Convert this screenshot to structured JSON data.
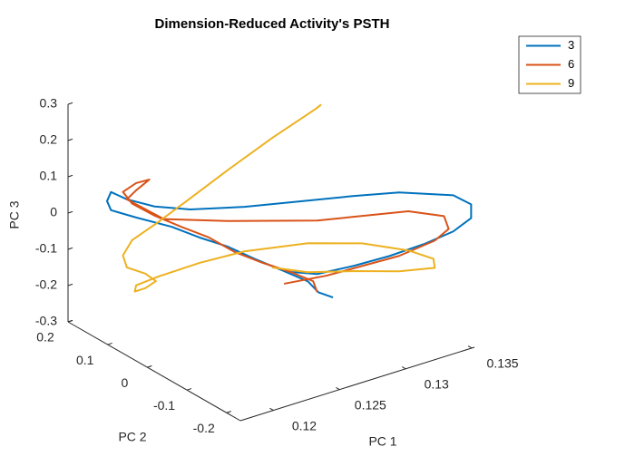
{
  "chart_data": {
    "type": "line3d",
    "title": "Dimension-Reduced Activity's PSTH",
    "xlabel": "PC 1",
    "ylabel": "PC 2",
    "zlabel": "PC 3",
    "xlim": [
      0.1175,
      0.1352
    ],
    "ylim": [
      -0.235,
      0.2
    ],
    "zlim": [
      -0.3,
      0.3
    ],
    "xticks": [
      0.12,
      0.125,
      0.13,
      0.135
    ],
    "yticks": [
      -0.2,
      -0.1,
      0,
      0.1,
      0.2
    ],
    "zticks": [
      -0.3,
      -0.2,
      -0.1,
      0,
      0.1,
      0.2,
      0.3
    ],
    "legend": "northeast",
    "series": [
      {
        "name": "3",
        "color": "#0072BD",
        "x": [
          0.1275,
          0.127,
          0.1271,
          0.1266,
          0.126,
          0.1255,
          0.1243,
          0.1231,
          0.1213,
          0.12,
          0.1197,
          0.12,
          0.1209,
          0.1224,
          0.1242,
          0.1274,
          0.1279,
          0.1297,
          0.1313,
          0.1342,
          0.1351,
          0.1351,
          0.1339,
          0.1321,
          0.1297,
          0.1273,
          0.1248,
          0.1231
        ],
        "y": [
          -0.135,
          -0.115,
          -0.085,
          -0.035,
          0.015,
          0.065,
          0.095,
          0.125,
          0.155,
          0.175,
          0.175,
          0.175,
          0.165,
          0.145,
          0.115,
          0.085,
          -0.035,
          -0.115,
          -0.175,
          -0.215,
          -0.23,
          -0.23,
          -0.225,
          -0.215,
          -0.205,
          -0.195,
          -0.185,
          -0.175
        ],
        "z": [
          -0.1372,
          -0.13,
          -0.1195,
          -0.114,
          -0.1065,
          -0.099,
          -0.0795,
          -0.055,
          -0.0275,
          -0.005,
          0.0235,
          0.045,
          0.021,
          -0.0035,
          -0.0135,
          -0.024,
          0.06,
          0.105,
          0.134,
          0.118,
          0.092,
          0.054,
          0.028,
          0.009,
          -0.004,
          -0.01,
          -0.0105,
          0.0085
        ]
      },
      {
        "name": "6",
        "color": "#D95319",
        "x": [
          0.1269,
          0.1272,
          0.1267,
          0.1261,
          0.1255,
          0.1247,
          0.1235,
          0.1221,
          0.121,
          0.1203,
          0.121,
          0.1217,
          0.121,
          0.1206,
          0.1219,
          0.1249,
          0.1287,
          0.132,
          0.1335,
          0.1337,
          0.1328,
          0.1304,
          0.1279,
          0.1255,
          0.1229
        ],
        "y": [
          -0.115,
          -0.095,
          -0.055,
          -0.005,
          0.045,
          0.085,
          0.115,
          0.135,
          0.155,
          0.155,
          0.145,
          0.135,
          0.145,
          0.155,
          0.105,
          0.045,
          -0.055,
          -0.175,
          -0.215,
          -0.22,
          -0.215,
          -0.205,
          -0.195,
          -0.185,
          -0.165
        ],
        "z": [
          -0.128,
          -0.114,
          -0.108,
          -0.1075,
          -0.1025,
          -0.0775,
          -0.053,
          -0.019,
          0.014,
          0.0545,
          0.077,
          0.085,
          0.057,
          0.0305,
          -0.0075,
          -0.0095,
          0.011,
          0.074,
          0.0685,
          0.034,
          0.009,
          -0.012,
          -0.0175,
          -0.023,
          -0.028
        ]
      },
      {
        "name": "9",
        "color": "#EDB120",
        "x": [
          0.1326,
          0.1322,
          0.1295,
          0.1267,
          0.1242,
          0.1224,
          0.1213,
          0.1209,
          0.1212,
          0.1223,
          0.1228,
          0.1223,
          0.1218,
          0.1219,
          0.123,
          0.1246,
          0.1262,
          0.1286,
          0.1303,
          0.132,
          0.1327,
          0.1328,
          0.1313,
          0.1291,
          0.1271,
          0.1259
        ],
        "y": [
          0.065,
          0.065,
          0.085,
          0.105,
          0.125,
          0.145,
          0.165,
          0.175,
          0.175,
          0.165,
          0.155,
          0.165,
          0.175,
          0.175,
          0.155,
          0.105,
          0.045,
          -0.035,
          -0.115,
          -0.175,
          -0.215,
          -0.215,
          -0.175,
          -0.135,
          -0.085,
          -0.035
        ],
        "z": [
          0.211,
          0.204,
          0.142,
          0.072,
          0.003,
          -0.0535,
          -0.096,
          -0.14,
          -0.1765,
          -0.2,
          -0.22,
          -0.24,
          -0.25,
          -0.234,
          -0.2095,
          -0.159,
          -0.108,
          -0.063,
          -0.0325,
          -0.034,
          -0.04,
          -0.066,
          -0.0835,
          -0.083,
          -0.0945,
          -0.099
        ]
      }
    ]
  }
}
